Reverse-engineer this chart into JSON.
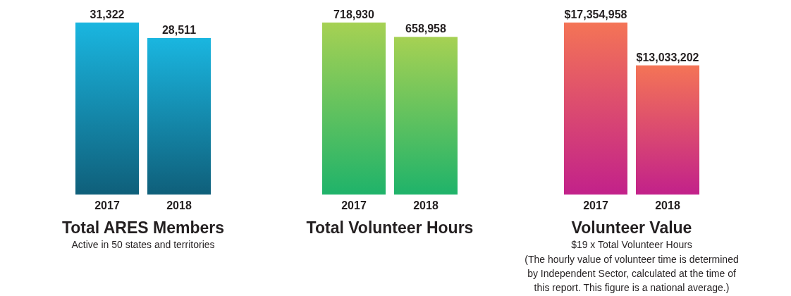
{
  "chart_data": [
    {
      "type": "bar",
      "title": "Total ARES Members",
      "subtitle": "Active in 50 states and territories",
      "categories": [
        "2017",
        "2018"
      ],
      "values": [
        31322,
        28511
      ],
      "value_labels": [
        "31,322",
        "28,511"
      ],
      "color": "#1ab6e0"
    },
    {
      "type": "bar",
      "title": "Total Volunteer Hours",
      "categories": [
        "2017",
        "2018"
      ],
      "values": [
        718930,
        658958
      ],
      "value_labels": [
        "718,930",
        "658,958"
      ],
      "color": "#a6d153"
    },
    {
      "type": "bar",
      "title": "Volunteer Value",
      "subtitle": "$19 x Total Volunteer Hours",
      "annotations": [
        "(The hourly value of volunteer time is determined by Independent Sector, calculated at the time of this report. This figure is a national average.)"
      ],
      "categories": [
        "2017",
        "2018"
      ],
      "values": [
        17354958,
        13033202
      ],
      "value_labels": [
        "$17,354,958",
        "$13,033,202"
      ],
      "color": "#f47456"
    }
  ]
}
